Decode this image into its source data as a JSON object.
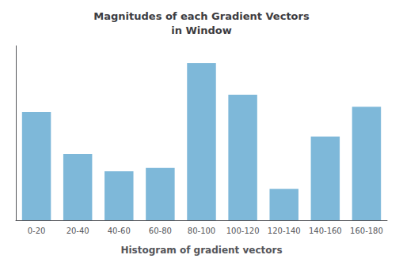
{
  "chart_data": {
    "type": "bar",
    "title": "Magnitudes of each Gradient Vectors\nin Window",
    "xlabel": "Histogram of gradient vectors",
    "categories": [
      "0-20",
      "20-40",
      "40-60",
      "60-80",
      "80-100",
      "100-120",
      "120-140",
      "140-160",
      "160-180"
    ],
    "values": [
      62,
      38,
      28,
      30,
      90,
      72,
      18,
      48,
      65
    ],
    "color": "#7eb8d9",
    "ylim": [
      0,
      100
    ],
    "grid": false,
    "tick_labels": "x"
  }
}
